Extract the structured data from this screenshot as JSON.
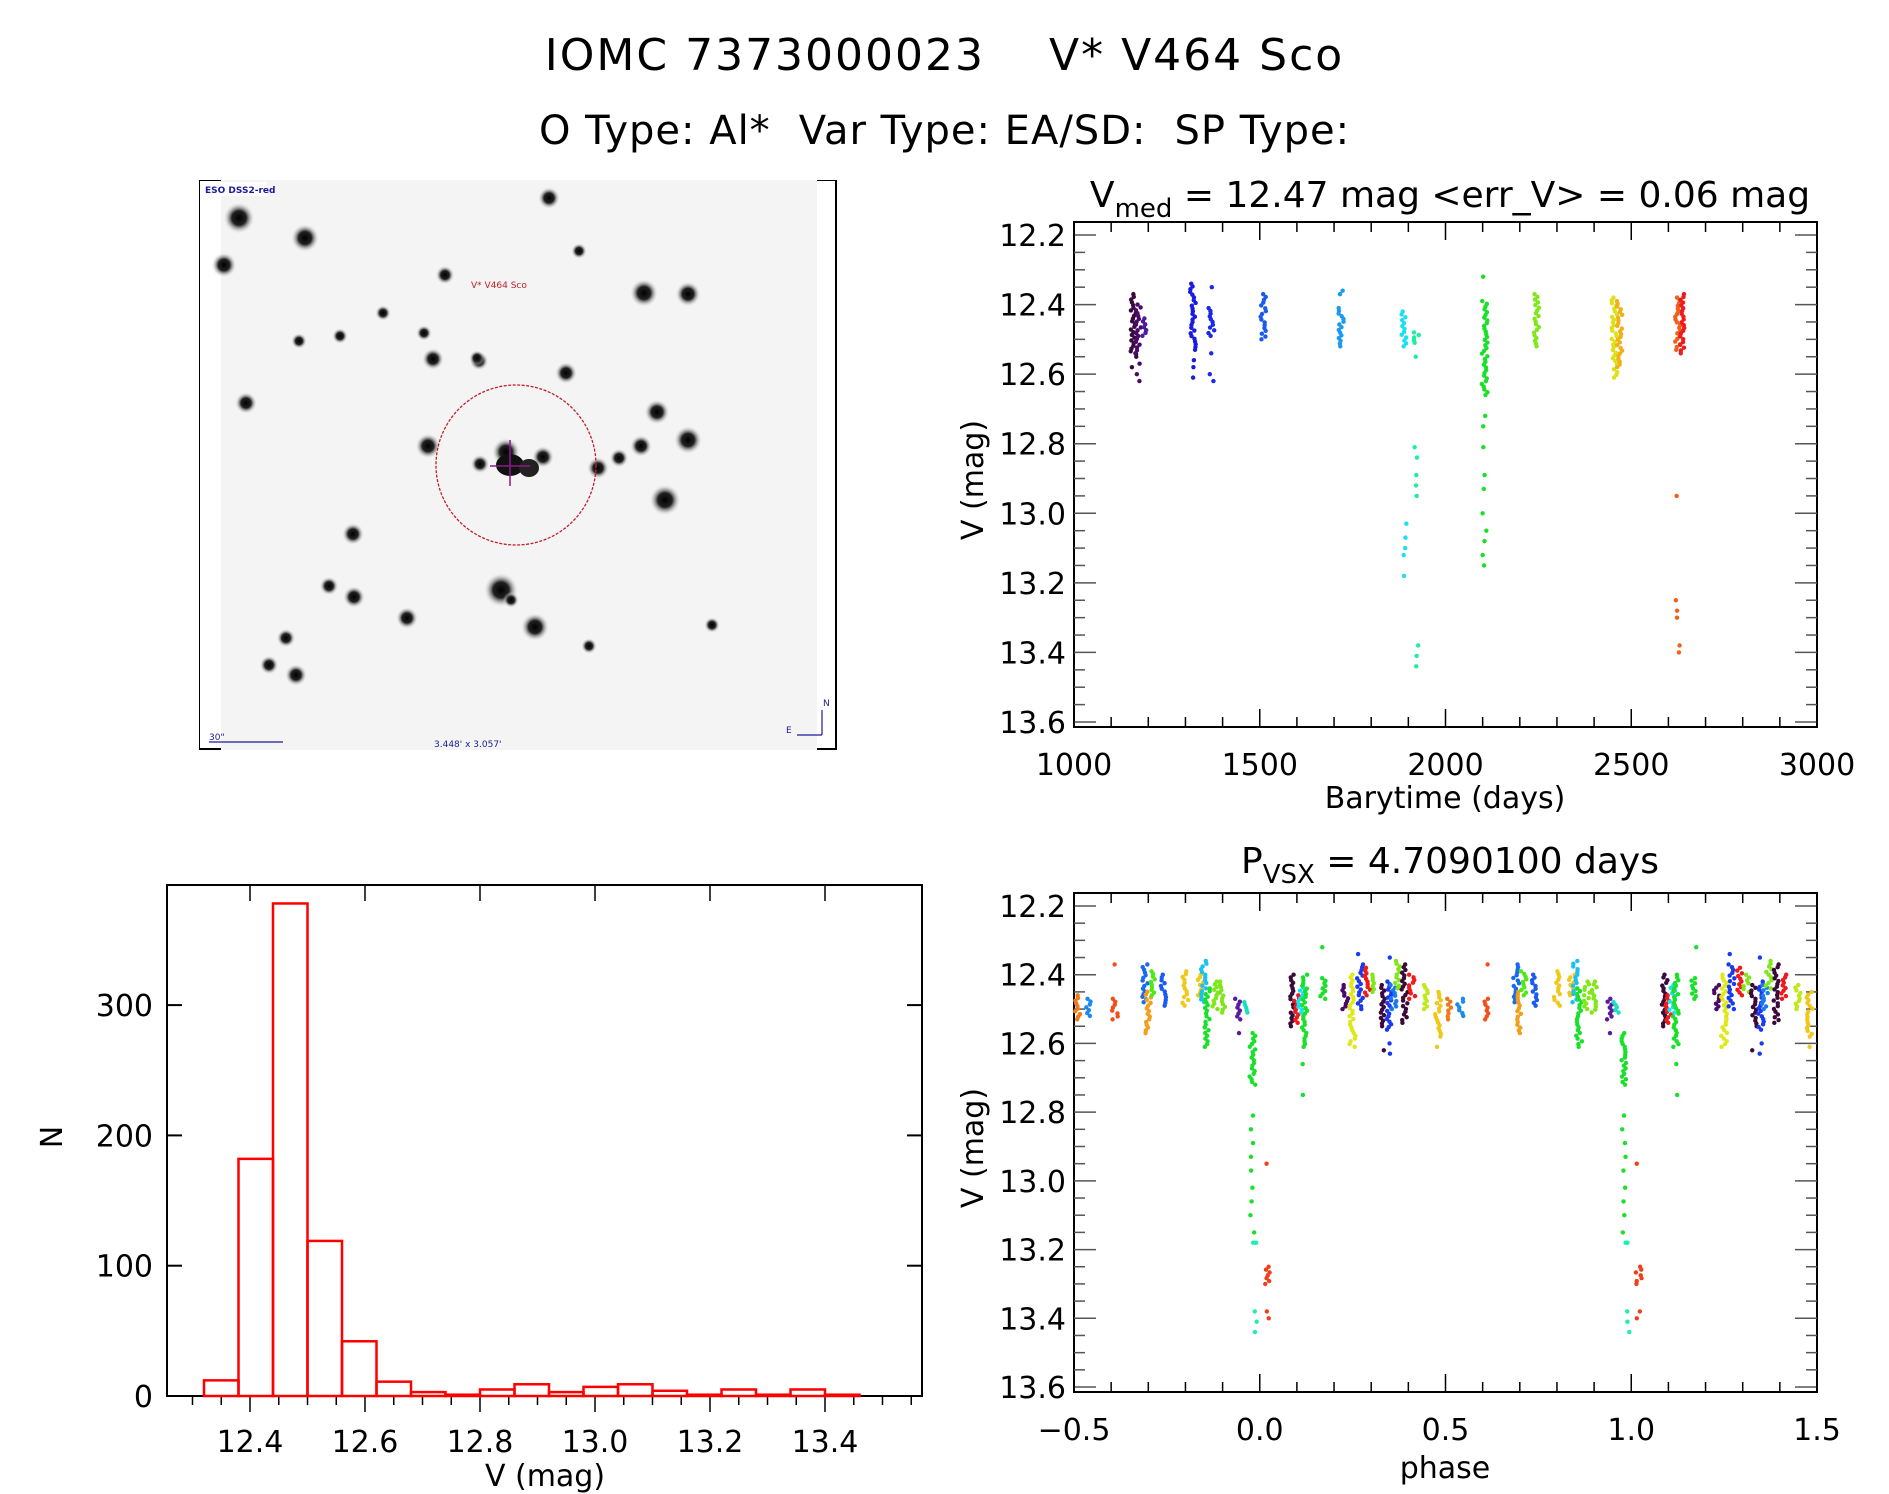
{
  "header": {
    "catalog_id": "IOMC 7373000023",
    "star_name": "V* V464 Sco",
    "o_type": "O Type: Al*",
    "var_type": "Var Type: EA/SD:",
    "sp_type": "SP Type:"
  },
  "sky_image": {
    "survey_label": "ESO DSS2-red",
    "target_label": "V* V464 Sco",
    "scale_label": "30\"",
    "fov_label": "3.448' x 3.057'",
    "north_label": "N",
    "east_label": "E",
    "circle_color": "#c0202a",
    "cross_color": "#8a1a8a",
    "label_color": "#1a1a9a"
  },
  "chart_data": [
    {
      "id": "light_curve",
      "type": "scatter",
      "title_main": "V",
      "title_sub": "med",
      "title_rest": " = 12.47 mag <err_V> = 0.06 mag",
      "xlabel": "Barytime (days)",
      "ylabel": "V (mag)",
      "xlim": [
        1000,
        3000
      ],
      "ylim": [
        13.6,
        12.2
      ],
      "xticks": [
        "1000",
        "1500",
        "2000",
        "2500",
        "3000"
      ],
      "yticks": [
        "12.2",
        "12.4",
        "12.6",
        "12.8",
        "13.0",
        "13.2",
        "13.4",
        "13.6"
      ],
      "groups": [
        {
          "x": 1160,
          "color": "#3a0a3a",
          "ymin": 12.37,
          "ymax": 12.55,
          "extra": [
            12.58
          ]
        },
        {
          "x": 1172,
          "color": "#4a0a6a",
          "ymin": 12.4,
          "ymax": 12.54,
          "extra": [
            12.57,
            12.6,
            12.62
          ]
        },
        {
          "x": 1190,
          "color": "#4a1aa0",
          "ymin": 12.44,
          "ymax": 12.49,
          "extra": []
        },
        {
          "x": 1320,
          "color": "#1a1ae0",
          "ymin": 12.34,
          "ymax": 12.53,
          "extra": [
            12.56,
            12.58,
            12.61
          ]
        },
        {
          "x": 1370,
          "color": "#1a2ae8",
          "ymin": 12.41,
          "ymax": 12.49,
          "extra": [
            12.35,
            12.54,
            12.6,
            12.62
          ]
        },
        {
          "x": 1510,
          "color": "#1a5af0",
          "ymin": 12.37,
          "ymax": 12.5,
          "extra": []
        },
        {
          "x": 1720,
          "color": "#1a9af0",
          "ymin": 12.41,
          "ymax": 12.52,
          "extra": [
            12.36,
            12.37
          ]
        },
        {
          "x": 1890,
          "color": "#1ae0f0",
          "ymin": 12.42,
          "ymax": 12.52,
          "extra": [
            13.03,
            13.07,
            13.1,
            13.12,
            13.18
          ]
        },
        {
          "x": 1922,
          "color": "#1af0a0",
          "ymin": 12.48,
          "ymax": 12.51,
          "extra": [
            12.55,
            12.81,
            12.84,
            12.89,
            12.92,
            12.95,
            13.38,
            13.41,
            13.44
          ]
        },
        {
          "x": 2105,
          "color": "#1ae02a",
          "ymin": 12.39,
          "ymax": 12.66,
          "extra": [
            12.32,
            12.72,
            12.75,
            12.81,
            12.89,
            12.93,
            13.0,
            13.05,
            13.08,
            13.12,
            13.15
          ]
        },
        {
          "x": 2245,
          "color": "#80e81a",
          "ymin": 12.37,
          "ymax": 12.52,
          "extra": []
        },
        {
          "x": 2455,
          "color": "#e0e01a",
          "ymin": 12.38,
          "ymax": 12.61,
          "extra": []
        },
        {
          "x": 2468,
          "color": "#f0b01a",
          "ymin": 12.39,
          "ymax": 12.58,
          "extra": []
        },
        {
          "x": 2625,
          "color": "#f0601a",
          "ymin": 12.38,
          "ymax": 12.53,
          "extra": [
            12.95,
            13.25,
            13.28,
            13.3,
            13.38,
            13.4
          ]
        },
        {
          "x": 2640,
          "color": "#f01a1a",
          "ymin": 12.37,
          "ymax": 12.54,
          "extra": []
        }
      ]
    },
    {
      "id": "histogram",
      "type": "bar",
      "title": "",
      "xlabel": "V (mag)",
      "ylabel": "N",
      "xlim": [
        12.27,
        13.55
      ],
      "ylim": [
        0,
        390
      ],
      "xticks": [
        "12.4",
        "12.6",
        "12.8",
        "13.0",
        "13.2",
        "13.4"
      ],
      "yticks": [
        "0",
        "100",
        "200",
        "300"
      ],
      "bin_start": 12.32,
      "bin_width": 0.06,
      "values": [
        12,
        182,
        378,
        119,
        42,
        11,
        3,
        1,
        5,
        9,
        3,
        7,
        9,
        4,
        1,
        5,
        1,
        5,
        1
      ],
      "bar_color": "#ff0000"
    },
    {
      "id": "phase_curve",
      "type": "scatter",
      "title_main": "P",
      "title_sub": "VSX",
      "title_rest": " = 4.7090100 days",
      "xlabel": "phase",
      "ylabel": "V (mag)",
      "xlim": [
        -0.5,
        1.5
      ],
      "ylim": [
        13.6,
        12.2
      ],
      "xticks": [
        "−0.5",
        "0.0",
        "0.5",
        "1.0",
        "1.5"
      ],
      "yticks": [
        "12.2",
        "12.4",
        "12.6",
        "12.8",
        "13.0",
        "13.2",
        "13.4",
        "13.6"
      ],
      "period_days": 4.70901,
      "groups": [
        {
          "x": -0.49,
          "color": "#f07a1a",
          "ymin": 12.46,
          "ymax": 12.53,
          "extra": []
        },
        {
          "x": -0.46,
          "color": "#1a8af0",
          "ymin": 12.47,
          "ymax": 12.52,
          "extra": []
        },
        {
          "x": -0.39,
          "color": "#f0501a",
          "ymin": 12.47,
          "ymax": 12.53,
          "extra": [
            12.37
          ]
        },
        {
          "x": -0.31,
          "color": "#1a6af0",
          "ymin": 12.37,
          "ymax": 12.48,
          "extra": []
        },
        {
          "x": -0.3,
          "color": "#f0a01a",
          "ymin": 12.45,
          "ymax": 12.57,
          "extra": []
        },
        {
          "x": -0.29,
          "color": "#50e81a",
          "ymin": 12.39,
          "ymax": 12.46,
          "extra": []
        },
        {
          "x": -0.26,
          "color": "#1a5af0",
          "ymin": 12.4,
          "ymax": 12.49,
          "extra": []
        },
        {
          "x": -0.2,
          "color": "#f0c81a",
          "ymin": 12.39,
          "ymax": 12.49,
          "extra": []
        },
        {
          "x": -0.16,
          "color": "#f0c81a",
          "ymin": 12.4,
          "ymax": 12.46,
          "extra": []
        },
        {
          "x": -0.15,
          "color": "#1ac0f0",
          "ymin": 12.36,
          "ymax": 12.48,
          "extra": []
        },
        {
          "x": -0.14,
          "color": "#1ae02a",
          "ymin": 12.44,
          "ymax": 12.61,
          "extra": []
        },
        {
          "x": -0.12,
          "color": "#80e81a",
          "ymin": 12.42,
          "ymax": 12.5,
          "extra": []
        },
        {
          "x": -0.1,
          "color": "#80e81a",
          "ymin": 12.42,
          "ymax": 12.51,
          "extra": []
        },
        {
          "x": -0.06,
          "color": "#5a1aa0",
          "ymin": 12.47,
          "ymax": 12.53,
          "extra": [
            12.57
          ]
        },
        {
          "x": -0.04,
          "color": "#1ae0c0",
          "ymin": 12.48,
          "ymax": 12.51,
          "extra": []
        },
        {
          "x": -0.02,
          "color": "#1ae02a",
          "ymin": 12.57,
          "ymax": 12.72,
          "extra": [
            12.81,
            12.85,
            12.89,
            12.93,
            12.97,
            13.02,
            13.06,
            13.1,
            13.15
          ]
        },
        {
          "x": -0.01,
          "color": "#1af0b0",
          "ymin": 13.18,
          "ymax": 13.18,
          "extra": [
            13.38,
            13.41,
            13.44
          ]
        },
        {
          "x": 0.02,
          "color": "#f0401a",
          "ymin": 13.25,
          "ymax": 13.3,
          "extra": [
            12.95,
            13.38,
            13.4
          ]
        },
        {
          "x": 0.09,
          "color": "#3a0a3a",
          "ymin": 12.4,
          "ymax": 12.55,
          "extra": []
        },
        {
          "x": 0.1,
          "color": "#f01a1a",
          "ymin": 12.46,
          "ymax": 12.54,
          "extra": []
        },
        {
          "x": 0.11,
          "color": "#1ae0f0",
          "ymin": 12.43,
          "ymax": 12.51,
          "extra": []
        },
        {
          "x": 0.12,
          "color": "#1ae02a",
          "ymin": 12.4,
          "ymax": 12.61,
          "extra": [
            12.66,
            12.75
          ]
        },
        {
          "x": 0.17,
          "color": "#1ae02a",
          "ymin": 12.41,
          "ymax": 12.47,
          "extra": [
            12.32
          ]
        },
        {
          "x": 0.23,
          "color": "#4a0a6a",
          "ymin": 12.43,
          "ymax": 12.5,
          "extra": []
        },
        {
          "x": 0.25,
          "color": "#e0e81a",
          "ymin": 12.4,
          "ymax": 12.61,
          "extra": []
        },
        {
          "x": 0.27,
          "color": "#1a3af0",
          "ymin": 12.37,
          "ymax": 12.5,
          "extra": [
            12.34
          ]
        },
        {
          "x": 0.29,
          "color": "#f01a1a",
          "ymin": 12.38,
          "ymax": 12.46,
          "extra": []
        },
        {
          "x": 0.31,
          "color": "#80e81a",
          "ymin": 12.4,
          "ymax": 12.45,
          "extra": []
        },
        {
          "x": 0.33,
          "color": "#3a0a3a",
          "ymin": 12.43,
          "ymax": 12.55,
          "extra": [
            12.62
          ]
        },
        {
          "x": 0.35,
          "color": "#1a3af0",
          "ymin": 12.42,
          "ymax": 12.56,
          "extra": [
            12.35,
            12.6,
            12.63
          ]
        },
        {
          "x": 0.36,
          "color": "#1a7af0",
          "ymin": 12.43,
          "ymax": 12.5,
          "extra": []
        },
        {
          "x": 0.37,
          "color": "#80e81a",
          "ymin": 12.36,
          "ymax": 12.44,
          "extra": []
        },
        {
          "x": 0.39,
          "color": "#3a0a3a",
          "ymin": 12.37,
          "ymax": 12.54,
          "extra": []
        },
        {
          "x": 0.41,
          "color": "#f01a1a",
          "ymin": 12.4,
          "ymax": 12.47,
          "extra": []
        },
        {
          "x": 0.45,
          "color": "#c0e81a",
          "ymin": 12.43,
          "ymax": 12.5,
          "extra": []
        },
        {
          "x": 0.48,
          "color": "#f0c81a",
          "ymin": 12.45,
          "ymax": 12.58,
          "extra": [
            12.61
          ]
        },
        {
          "x": 0.51,
          "color": "#f07a1a",
          "ymin": 12.47,
          "ymax": 12.53,
          "extra": []
        },
        {
          "x": 0.54,
          "color": "#1a8af0",
          "ymin": 12.47,
          "ymax": 12.52,
          "extra": []
        },
        {
          "x": 0.61,
          "color": "#f0501a",
          "ymin": 12.47,
          "ymax": 12.53,
          "extra": [
            12.37
          ]
        },
        {
          "x": 0.69,
          "color": "#1a6af0",
          "ymin": 12.37,
          "ymax": 12.48,
          "extra": []
        },
        {
          "x": 0.7,
          "color": "#f0a01a",
          "ymin": 12.45,
          "ymax": 12.57,
          "extra": []
        },
        {
          "x": 0.71,
          "color": "#50e81a",
          "ymin": 12.39,
          "ymax": 12.46,
          "extra": []
        },
        {
          "x": 0.74,
          "color": "#1a5af0",
          "ymin": 12.4,
          "ymax": 12.49,
          "extra": []
        },
        {
          "x": 0.8,
          "color": "#f0c81a",
          "ymin": 12.39,
          "ymax": 12.49,
          "extra": []
        },
        {
          "x": 0.84,
          "color": "#f0c81a",
          "ymin": 12.4,
          "ymax": 12.46,
          "extra": []
        },
        {
          "x": 0.85,
          "color": "#1ac0f0",
          "ymin": 12.36,
          "ymax": 12.48,
          "extra": []
        },
        {
          "x": 0.86,
          "color": "#1ae02a",
          "ymin": 12.44,
          "ymax": 12.61,
          "extra": []
        },
        {
          "x": 0.88,
          "color": "#80e81a",
          "ymin": 12.42,
          "ymax": 12.5,
          "extra": []
        },
        {
          "x": 0.9,
          "color": "#80e81a",
          "ymin": 12.42,
          "ymax": 12.51,
          "extra": []
        },
        {
          "x": 0.94,
          "color": "#5a1aa0",
          "ymin": 12.47,
          "ymax": 12.53,
          "extra": [
            12.57
          ]
        },
        {
          "x": 0.96,
          "color": "#1ae0c0",
          "ymin": 12.48,
          "ymax": 12.51,
          "extra": []
        },
        {
          "x": 0.98,
          "color": "#1ae02a",
          "ymin": 12.57,
          "ymax": 12.72,
          "extra": [
            12.81,
            12.85,
            12.89,
            12.93,
            12.97,
            13.02,
            13.06,
            13.1,
            13.15
          ]
        },
        {
          "x": 0.99,
          "color": "#1af0b0",
          "ymin": 13.18,
          "ymax": 13.18,
          "extra": [
            13.38,
            13.41,
            13.44
          ]
        },
        {
          "x": 1.02,
          "color": "#f0401a",
          "ymin": 13.25,
          "ymax": 13.3,
          "extra": [
            12.95,
            13.38,
            13.4
          ]
        },
        {
          "x": 1.09,
          "color": "#3a0a3a",
          "ymin": 12.4,
          "ymax": 12.55,
          "extra": []
        },
        {
          "x": 1.1,
          "color": "#f01a1a",
          "ymin": 12.46,
          "ymax": 12.54,
          "extra": []
        },
        {
          "x": 1.11,
          "color": "#1ae0f0",
          "ymin": 12.43,
          "ymax": 12.51,
          "extra": []
        },
        {
          "x": 1.12,
          "color": "#1ae02a",
          "ymin": 12.4,
          "ymax": 12.61,
          "extra": [
            12.66,
            12.75
          ]
        },
        {
          "x": 1.17,
          "color": "#1ae02a",
          "ymin": 12.41,
          "ymax": 12.47,
          "extra": [
            12.32
          ]
        },
        {
          "x": 1.23,
          "color": "#4a0a6a",
          "ymin": 12.43,
          "ymax": 12.5,
          "extra": []
        },
        {
          "x": 1.25,
          "color": "#e0e81a",
          "ymin": 12.4,
          "ymax": 12.61,
          "extra": []
        },
        {
          "x": 1.27,
          "color": "#1a3af0",
          "ymin": 12.37,
          "ymax": 12.5,
          "extra": [
            12.34
          ]
        },
        {
          "x": 1.29,
          "color": "#f01a1a",
          "ymin": 12.38,
          "ymax": 12.46,
          "extra": []
        },
        {
          "x": 1.31,
          "color": "#80e81a",
          "ymin": 12.4,
          "ymax": 12.45,
          "extra": []
        },
        {
          "x": 1.33,
          "color": "#3a0a3a",
          "ymin": 12.43,
          "ymax": 12.55,
          "extra": [
            12.62
          ]
        },
        {
          "x": 1.35,
          "color": "#1a3af0",
          "ymin": 12.42,
          "ymax": 12.56,
          "extra": [
            12.35,
            12.6,
            12.63
          ]
        },
        {
          "x": 1.36,
          "color": "#1a7af0",
          "ymin": 12.43,
          "ymax": 12.5,
          "extra": []
        },
        {
          "x": 1.37,
          "color": "#80e81a",
          "ymin": 12.36,
          "ymax": 12.44,
          "extra": []
        },
        {
          "x": 1.39,
          "color": "#3a0a3a",
          "ymin": 12.37,
          "ymax": 12.54,
          "extra": []
        },
        {
          "x": 1.41,
          "color": "#f01a1a",
          "ymin": 12.4,
          "ymax": 12.47,
          "extra": []
        },
        {
          "x": 1.45,
          "color": "#c0e81a",
          "ymin": 12.43,
          "ymax": 12.5,
          "extra": []
        },
        {
          "x": 1.48,
          "color": "#f0c81a",
          "ymin": 12.45,
          "ymax": 12.58,
          "extra": [
            12.61
          ]
        }
      ]
    }
  ]
}
